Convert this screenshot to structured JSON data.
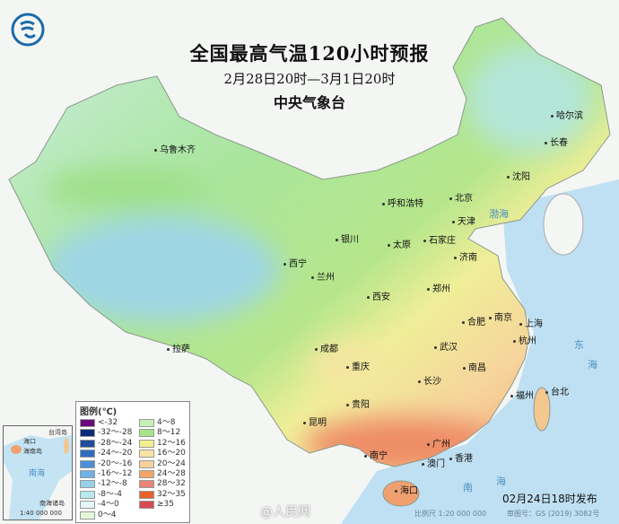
{
  "title": "全国最高气温120小时预报",
  "period": "2月28日20时—3月1日20时",
  "agency": "中央气象台",
  "issued": "02月24日18时发布",
  "scale": "比例尺 1:20 000 000",
  "approval": "审图号：GS (2019) 3082号",
  "watermark": "@人民网",
  "colors": {
    "sea": "#bfe0f2",
    "land_outside": "#f4f6f4",
    "title": "#111111"
  },
  "cities": [
    "乌鲁木齐",
    "哈尔滨",
    "长春",
    "沈阳",
    "北京",
    "天津",
    "呼和浩特",
    "石家庄",
    "太原",
    "银川",
    "济南",
    "西宁",
    "兰州",
    "郑州",
    "西安",
    "合肥",
    "南京",
    "上海",
    "杭州",
    "武汉",
    "成都",
    "重庆",
    "拉萨",
    "南昌",
    "长沙",
    "贵阳",
    "福州",
    "台北",
    "昆明",
    "广州",
    "南宁",
    "香港",
    "澳门",
    "海口"
  ],
  "seas": [
    "渤海",
    "东",
    "海",
    "南",
    "海"
  ],
  "inset": {
    "labels": [
      "台湾岛",
      "海口",
      "海南岛",
      "南海",
      "南海诸岛"
    ],
    "scale": "1:40 000 000"
  },
  "legend": {
    "title": "图例(℃)",
    "items": [
      {
        "label": "<-32",
        "color": "#6a0a7a"
      },
      {
        "label": "-32～-28",
        "color": "#0a2a7a"
      },
      {
        "label": "-28～-24",
        "color": "#1f4e9a"
      },
      {
        "label": "-24～-20",
        "color": "#2f6cc0"
      },
      {
        "label": "-20～-16",
        "color": "#4a8fd8"
      },
      {
        "label": "-16～-12",
        "color": "#6fb2e6"
      },
      {
        "label": "-12～-8",
        "color": "#96d0ea"
      },
      {
        "label": "-8～-4",
        "color": "#b8e8ee"
      },
      {
        "label": "-4～0",
        "color": "#e4f6f6"
      },
      {
        "label": "0～4",
        "color": "#e6f8d8"
      },
      {
        "label": "4～8",
        "color": "#c6f0b6"
      },
      {
        "label": "8～12",
        "color": "#a6e48a"
      },
      {
        "label": "12～16",
        "color": "#f2f08e"
      },
      {
        "label": "16～20",
        "color": "#f8e2a6"
      },
      {
        "label": "20～24",
        "color": "#f6d09a"
      },
      {
        "label": "24～28",
        "color": "#f2a66a"
      },
      {
        "label": "28～32",
        "color": "#ec8478"
      },
      {
        "label": "32～35",
        "color": "#e8602a"
      },
      {
        "label": "≥35",
        "color": "#d84a52"
      }
    ]
  }
}
